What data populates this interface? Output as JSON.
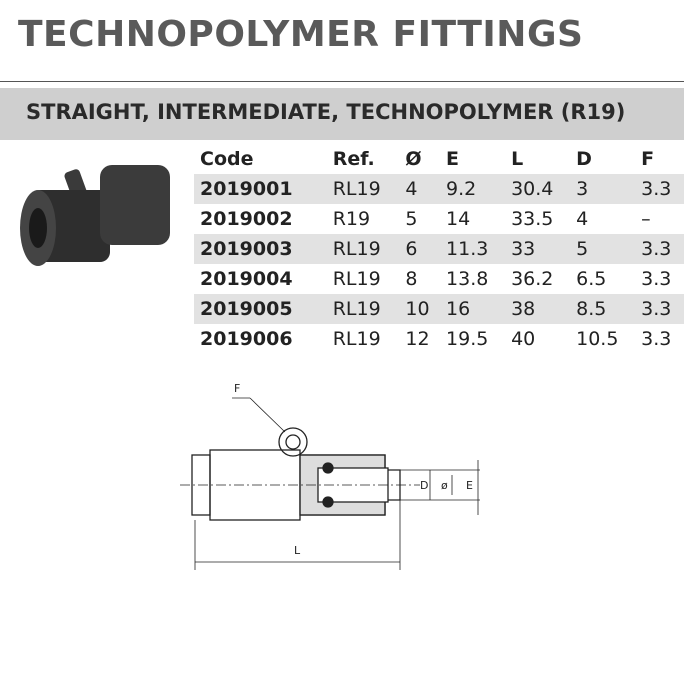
{
  "header": {
    "title": "TECHNOPOLYMER FITTINGS",
    "subtitle": "STRAIGHT, INTERMEDIATE, TECHNOPOLYMER (R19)"
  },
  "table": {
    "columns": [
      "Code",
      "Ref.",
      "Ø",
      "E",
      "L",
      "D",
      "F"
    ],
    "rows": [
      [
        "2019001",
        "RL19",
        "4",
        "9.2",
        "30.4",
        "3",
        "3.3"
      ],
      [
        "2019002",
        "R19",
        "5",
        "14",
        "33.5",
        "4",
        "–"
      ],
      [
        "2019003",
        "RL19",
        "6",
        "11.3",
        "33",
        "5",
        "3.3"
      ],
      [
        "2019004",
        "RL19",
        "8",
        "13.8",
        "36.2",
        "6.5",
        "3.3"
      ],
      [
        "2019005",
        "RL19",
        "10",
        "16",
        "38",
        "8.5",
        "3.3"
      ],
      [
        "2019006",
        "RL19",
        "12",
        "19.5",
        "40",
        "10.5",
        "3.3"
      ]
    ]
  },
  "diagram": {
    "labels": {
      "F": "F",
      "D": "D",
      "diameter": "ø",
      "E": "E",
      "L": "L"
    }
  }
}
